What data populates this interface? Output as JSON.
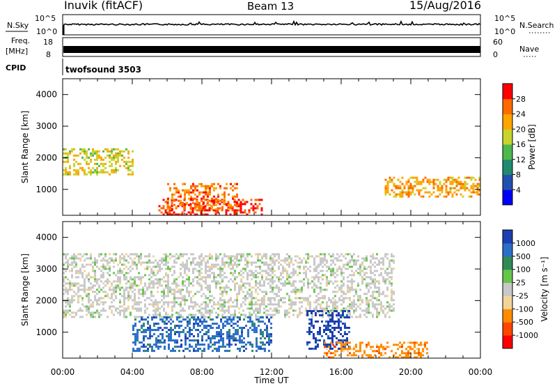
{
  "header": {
    "station": "Inuvik (fitACF)",
    "beam": "Beam 13",
    "date": "15/Aug/2016"
  },
  "top_panels": {
    "nsky_label": "N.Sky",
    "nsky_ticks": [
      "10^5",
      "10^0"
    ],
    "nsearch_label": "N.Search",
    "nsearch_ticks": [
      "10^5",
      "10^0"
    ],
    "freq_label_1": "Freq.",
    "freq_label_2": "[MHz]",
    "freq_ticks": [
      "18",
      "8"
    ],
    "nave_label": "Nave",
    "nave_ticks": [
      "60",
      "0"
    ],
    "cpid_label": "CPID",
    "cpid_value": "twofsound 3503"
  },
  "chart_data": [
    {
      "type": "heatmap",
      "name": "power",
      "ylabel": "Slant Range [km]",
      "xlabel": "",
      "x_ticks": [
        "00:00",
        "04:00",
        "08:00",
        "12:00",
        "16:00",
        "20:00",
        "00:00"
      ],
      "y_ticks": [
        "1000",
        "2000",
        "3000",
        "4000"
      ],
      "ylim": [
        180,
        4500
      ],
      "colorbar": {
        "label": "Power [dB]",
        "ticks": [
          "4",
          "8",
          "12",
          "16",
          "20",
          "24",
          "28"
        ],
        "range": [
          0,
          30
        ],
        "colors": [
          "#0000ff",
          "#2250b0",
          "#1f8a70",
          "#4db84d",
          "#c8d42a",
          "#ffa500",
          "#ff6a00",
          "#ff0000"
        ]
      },
      "features": [
        {
          "desc": "strong near-range echoes",
          "x_hours": [
            5.5,
            11.5
          ],
          "range_km": [
            180,
            700
          ],
          "power_db": 29
        },
        {
          "desc": "slanted streaks",
          "x_hours": [
            6,
            10
          ],
          "range_km": [
            400,
            1200
          ],
          "power_db": 25
        },
        {
          "desc": "band near 2000 km",
          "x_hours": [
            0,
            4
          ],
          "range_km": [
            1500,
            2300
          ],
          "power_db": 18
        },
        {
          "desc": "band near 1200 km",
          "x_hours": [
            18.5,
            24
          ],
          "range_km": [
            800,
            1400
          ],
          "power_db": 22
        }
      ]
    },
    {
      "type": "heatmap",
      "name": "velocity",
      "ylabel": "Slant Range [km]",
      "xlabel": "Time UT",
      "x_ticks": [
        "00:00",
        "04:00",
        "08:00",
        "12:00",
        "16:00",
        "20:00",
        "00:00"
      ],
      "y_ticks": [
        "1000",
        "2000",
        "3000",
        "4000"
      ],
      "ylim": [
        180,
        4500
      ],
      "colorbar": {
        "label": "Velocity [m s⁻¹]",
        "ticks": [
          "1000",
          "500",
          "100",
          "25",
          "-25",
          "-100",
          "-500",
          "-1000"
        ],
        "colors": [
          "#1e3fb0",
          "#2a6ec8",
          "#2e8b57",
          "#66c64a",
          "#c8c8c8",
          "#f2d49a",
          "#ff8c00",
          "#ff4500",
          "#ff0000"
        ]
      },
      "features": [
        {
          "desc": "ground scatter (grey)",
          "x_hours": [
            0,
            19
          ],
          "range_km": [
            1500,
            3500
          ],
          "velocity": 0
        },
        {
          "desc": "positive velocities",
          "x_hours": [
            4,
            12
          ],
          "range_km": [
            400,
            1500
          ],
          "velocity": 300
        },
        {
          "desc": "strong positive velocities",
          "x_hours": [
            14,
            16.5
          ],
          "range_km": [
            500,
            1700
          ],
          "velocity": 800
        },
        {
          "desc": "negative velocities",
          "x_hours": [
            15,
            21
          ],
          "range_km": [
            200,
            700
          ],
          "velocity": -300
        }
      ]
    }
  ]
}
